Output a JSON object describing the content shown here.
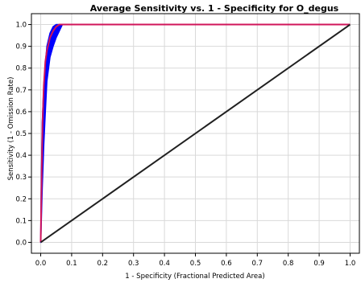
{
  "chart_data": {
    "type": "line",
    "title": "Average Sensitivity vs. 1 - Specificity for O_degus",
    "xlabel": "1 - Specificity (Fractional Predicted Area)",
    "ylabel": "Sensitivity (1 - Omission Rate)",
    "xlim": [
      -0.03,
      1.03
    ],
    "ylim": [
      -0.05,
      1.05
    ],
    "x_ticks": [
      0.0,
      0.1,
      0.2,
      0.3,
      0.4,
      0.5,
      0.6,
      0.7,
      0.8,
      0.9,
      1.0
    ],
    "y_ticks": [
      0.0,
      0.1,
      0.2,
      0.3,
      0.4,
      0.5,
      0.6,
      0.7,
      0.8,
      0.9,
      1.0
    ],
    "x_tick_labels": [
      "0.0",
      "0.1",
      "0.2",
      "0.3",
      "0.4",
      "0.5",
      "0.6",
      "0.7",
      "0.8",
      "0.9",
      "1.0"
    ],
    "y_tick_labels": [
      "0.0",
      "0.1",
      "0.2",
      "0.3",
      "0.4",
      "0.5",
      "0.6",
      "0.7",
      "0.8",
      "0.9",
      "1.0"
    ],
    "grid": true,
    "series": [
      {
        "color": "#0000ff",
        "style": "band",
        "upper": [
          [
            0.0,
            0.0
          ],
          [
            0.002,
            0.3
          ],
          [
            0.005,
            0.55
          ],
          [
            0.01,
            0.72
          ],
          [
            0.015,
            0.82
          ],
          [
            0.02,
            0.9
          ],
          [
            0.03,
            0.96
          ],
          [
            0.04,
            0.99
          ],
          [
            0.05,
            1.0
          ],
          [
            0.07,
            1.0
          ]
        ],
        "lower": [
          [
            0.07,
            1.0
          ],
          [
            0.06,
            0.97
          ],
          [
            0.05,
            0.94
          ],
          [
            0.04,
            0.9
          ],
          [
            0.03,
            0.85
          ],
          [
            0.02,
            0.74
          ],
          [
            0.015,
            0.6
          ],
          [
            0.01,
            0.45
          ],
          [
            0.005,
            0.25
          ],
          [
            0.0,
            0.0
          ]
        ]
      },
      {
        "color": "#d0145a",
        "style": "line",
        "points": [
          [
            0.0,
            0.0
          ],
          [
            0.003,
            0.3
          ],
          [
            0.006,
            0.55
          ],
          [
            0.01,
            0.72
          ],
          [
            0.015,
            0.83
          ],
          [
            0.02,
            0.88
          ],
          [
            0.03,
            0.94
          ],
          [
            0.04,
            0.97
          ],
          [
            0.05,
            0.99
          ],
          [
            0.06,
            1.0
          ],
          [
            1.0,
            1.0
          ]
        ]
      },
      {
        "color": "#202020",
        "style": "line",
        "points": [
          [
            0.0,
            0.0
          ],
          [
            1.0,
            1.0
          ]
        ]
      }
    ]
  }
}
